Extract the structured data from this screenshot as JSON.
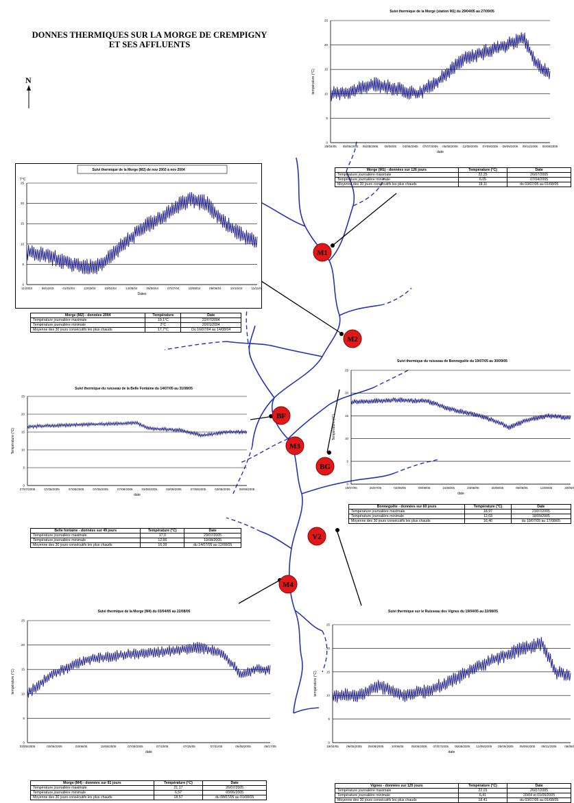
{
  "poster_title": [
    "DONNES THERMIQUES SUR LA MORGE DE CREMPIGNY",
    "ET SES AFFLUENTS"
  ],
  "north_label": "N",
  "colors": {
    "series": "#1a1a8c",
    "river": "#2333b4",
    "station": "#e01818"
  },
  "stations": [
    "M1",
    "M2",
    "BF",
    "M3",
    "BG",
    "V2",
    "M4"
  ],
  "chart_data": [
    {
      "id": "m1",
      "type": "line",
      "title": "Suivi thermique de la Morge (station M1) du 29/04/05 au 27/09/05",
      "ylabel": "température (°C)",
      "xlabel": "date",
      "ylim": [
        0,
        25
      ],
      "yticks": [
        0,
        5,
        10,
        15,
        20,
        25
      ],
      "xticks": [
        "28/04/05",
        "05/05/2005",
        "05/08/2005",
        "09/06/05",
        "04/06/2005",
        "07/07/2005",
        "05/08/2005",
        "12/08/2005",
        "07/09/2005",
        "09/09/2005",
        "09/11/2005",
        "05/08/2005"
      ],
      "grid": true,
      "profile": [
        [
          0,
          10
        ],
        [
          0.1,
          10.5
        ],
        [
          0.2,
          12
        ],
        [
          0.3,
          11
        ],
        [
          0.4,
          10
        ],
        [
          0.5,
          13
        ],
        [
          0.6,
          17
        ],
        [
          0.7,
          18.5
        ],
        [
          0.8,
          20
        ],
        [
          0.88,
          21.5
        ],
        [
          0.94,
          16
        ],
        [
          1,
          14
        ]
      ],
      "amplitude": 1.6,
      "table": {
        "headers": [
          "Morge (M1) - données sur 126 jours",
          "Température (°C)",
          "Date"
        ],
        "rows": [
          [
            "Température journalière maximale",
            "22,25",
            "26/07/2005"
          ],
          [
            "Température journalière minimale",
            "6,05",
            "07/04/2005"
          ],
          [
            "Moyenne des 30 jours consécutifs les plus chauds",
            "18,11",
            "du 03/07/05 au 01/08/05"
          ]
        ]
      }
    },
    {
      "id": "m2",
      "type": "line",
      "title": "Suivi thermique de la Morge (M2) de nov 2003 à nov 2004",
      "ylabel": "T°C",
      "xlabel": "Dates",
      "ylim": [
        0,
        25
      ],
      "yticks": [
        0,
        5,
        10,
        15,
        20,
        25
      ],
      "xticks": [
        "11/2003",
        "06/12/03",
        "01/02/04",
        "12/03/04",
        "10/04/04",
        "14/05/04",
        "06/06/04",
        "07/07/04",
        "10/08/04",
        "09/09/04",
        "10/10/04",
        "11/11/04"
      ],
      "grid": true,
      "profile": [
        [
          0,
          8
        ],
        [
          0.1,
          7
        ],
        [
          0.2,
          5
        ],
        [
          0.3,
          4
        ],
        [
          0.4,
          9
        ],
        [
          0.5,
          14
        ],
        [
          0.6,
          17
        ],
        [
          0.7,
          21
        ],
        [
          0.78,
          20
        ],
        [
          0.86,
          15
        ],
        [
          0.94,
          12
        ],
        [
          1,
          10
        ]
      ],
      "amplitude": 2.2,
      "table": {
        "headers": [
          "Morge (M2) - données 2004",
          "Température",
          "Date"
        ],
        "rows": [
          [
            "Température journalière maximale",
            "19,1°C",
            "22/07/2004"
          ],
          [
            "Température journalière minimale",
            "2°C",
            "20/01/2004"
          ],
          [
            "Moyenne des 30 jours consécutifs les plus chauds",
            "17,7°C",
            "Du 16/07/04 au 14/08/04"
          ]
        ]
      }
    },
    {
      "id": "bf",
      "type": "line",
      "title": "Suivi thermique du ruisseau de la Belle Fontaine du 14/07/05 au 31/08/05",
      "ylabel": "Température (°C)",
      "xlabel": "date",
      "ylim": [
        0,
        25
      ],
      "yticks": [
        0,
        5,
        10,
        15,
        20,
        25
      ],
      "xticks": [
        "27/07/2005",
        "07/08/2005",
        "07/08/2005",
        "07/08/2005",
        "07/08/2005",
        "03/08/2005",
        "03/08/2005",
        "07/08/2005",
        "03/08/2005",
        "08/08/2005"
      ],
      "grid": true,
      "profile": [
        [
          0,
          16.5
        ],
        [
          0.2,
          17
        ],
        [
          0.4,
          17.3
        ],
        [
          0.5,
          17.5
        ],
        [
          0.55,
          16
        ],
        [
          0.7,
          15.5
        ],
        [
          0.8,
          14
        ],
        [
          0.9,
          15
        ],
        [
          1,
          15
        ]
      ],
      "amplitude": 0.5,
      "table": {
        "headers": [
          "Belle fontaine - données sur 49 jours",
          "Température (°C)",
          "Date"
        ],
        "rows": [
          [
            "Température journalière maximale",
            "17,0",
            "29/07/2005"
          ],
          [
            "Température journalière minimale",
            "12,96",
            "19/08/2005"
          ],
          [
            "Moyenne des 30 jours consécutifs les plus chauds",
            "16,39",
            "du 14/07/05 au 12/08/05"
          ]
        ]
      }
    },
    {
      "id": "bg",
      "type": "line",
      "title": "Suivi thermique du ruisseau de Bonneguête du 19/07/05 au 30/09/05",
      "ylabel": "Température (°C)",
      "xlabel": "date",
      "ylim": [
        0,
        25
      ],
      "yticks": [
        0,
        5,
        10,
        15,
        20,
        25
      ],
      "xticks": [
        "19/07/05",
        "26/07/05",
        "02/08/05",
        "09/08/05",
        "16/08/05",
        "23/08/05",
        "30/08/05",
        "06/09/05",
        "13/09/05",
        "20/09/05"
      ],
      "grid": true,
      "profile": [
        [
          0,
          18
        ],
        [
          0.2,
          18.5
        ],
        [
          0.35,
          18.2
        ],
        [
          0.45,
          16.5
        ],
        [
          0.55,
          15.5
        ],
        [
          0.65,
          14
        ],
        [
          0.72,
          12.5
        ],
        [
          0.8,
          14
        ],
        [
          0.9,
          15
        ],
        [
          1,
          14.5
        ]
      ],
      "amplitude": 0.6,
      "table": {
        "headers": [
          "Bonneguête - données sur 60 jours",
          "Température (°C)",
          "Date"
        ],
        "rows": [
          [
            "Température journalière maximale",
            "18,97",
            "23/07/2005"
          ],
          [
            "Température journalière minimale",
            "12,03",
            "18/09/2005"
          ],
          [
            "Moyenne des 30 jours consécutifs les plus chauds",
            "16,46",
            "du 19/07/05 au 17/08/05"
          ]
        ]
      }
    },
    {
      "id": "m4",
      "type": "line",
      "title": "Suivi thermique de la Morge (M4) du 03/04/05 au 22/08/05",
      "ylabel": "température (°C)",
      "xlabel": "date",
      "ylim": [
        0,
        25
      ],
      "yticks": [
        0,
        5,
        10,
        15,
        20,
        25
      ],
      "xticks": [
        "03/05/2005",
        "03/06/2005",
        "03/06/05",
        "15/06/2005",
        "07/08/2005",
        "07/10/05",
        "07/25/05",
        "07/31/05",
        "06/08/2005",
        "08/17/05"
      ],
      "grid": true,
      "profile": [
        [
          0,
          10
        ],
        [
          0.1,
          14
        ],
        [
          0.25,
          17
        ],
        [
          0.4,
          18
        ],
        [
          0.55,
          18.5
        ],
        [
          0.7,
          19.5
        ],
        [
          0.8,
          18.5
        ],
        [
          0.88,
          14
        ],
        [
          0.94,
          15
        ],
        [
          1,
          15
        ]
      ],
      "amplitude": 1.2,
      "table": {
        "headers": [
          "Morge (M4) - données sur 81 jours",
          "Température (°C)",
          "Date"
        ],
        "rows": [
          [
            "Température journalière maximale",
            "21,17",
            "26/07/2005"
          ],
          [
            "Température journalière minimale",
            "6,57",
            "03/06/2005"
          ],
          [
            "Moyenne des 30 jours consécutifs les plus chauds",
            "18,57",
            "du 08/07/05 au 01/08/05"
          ]
        ]
      }
    },
    {
      "id": "v2",
      "type": "line",
      "title": "Suivi thermique sur le Ruisseau des Vignes du 19/04/05 au 22/08/05",
      "ylabel": "température (°C)",
      "xlabel": "date",
      "ylim": [
        0,
        25
      ],
      "yticks": [
        0,
        5,
        10,
        15,
        20,
        25
      ],
      "xticks": [
        "19/04/05",
        "06/05/2005",
        "05/08/2005",
        "10/06/05",
        "05/05/2005",
        "07/07/2005",
        "05/08/2005",
        "12/08/2005",
        "05/09/2005",
        "09/09/2005",
        "09/11/2005",
        "09/08/05"
      ],
      "grid": true,
      "profile": [
        [
          0,
          10
        ],
        [
          0.1,
          10
        ],
        [
          0.2,
          12
        ],
        [
          0.3,
          10
        ],
        [
          0.4,
          11
        ],
        [
          0.5,
          13
        ],
        [
          0.6,
          16
        ],
        [
          0.7,
          18
        ],
        [
          0.8,
          20
        ],
        [
          0.88,
          21
        ],
        [
          0.94,
          15
        ],
        [
          1,
          14
        ]
      ],
      "amplitude": 1.6,
      "table": {
        "headers": [
          "Vignes - données sur 125 jours",
          "Température (°C)",
          "Date"
        ],
        "rows": [
          [
            "Température journalière maximale",
            "22,01",
            "26/07/2005"
          ],
          [
            "Température journalière minimale",
            "6,41",
            "20/04 et 01/05/2005"
          ],
          [
            "Moyenne des 30 jours consécutifs les plus chauds",
            "18,41",
            "du 03/07/05 au 01/08/05"
          ]
        ]
      }
    }
  ]
}
